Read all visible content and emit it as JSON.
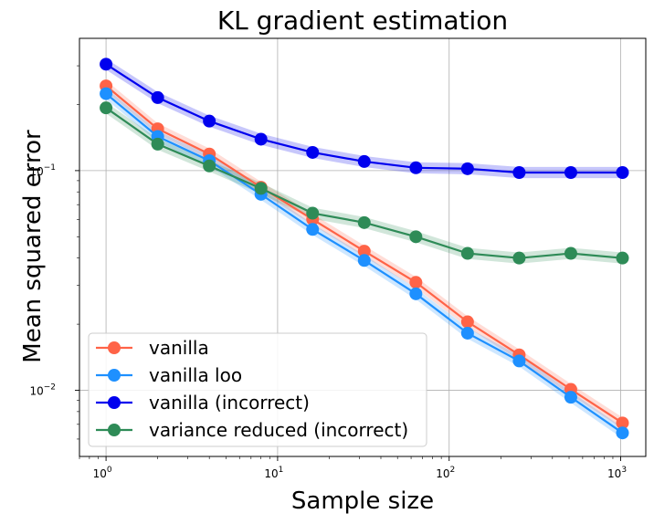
{
  "chart_data": {
    "type": "line",
    "title": "KL gradient estimation",
    "xlabel": "Sample size",
    "ylabel": "Mean squared error",
    "x_scale": "log",
    "y_scale": "log",
    "xlim": [
      0.7,
      1400
    ],
    "ylim": [
      0.005,
      0.4
    ],
    "grid": true,
    "legend_position": "lower-left",
    "x": [
      1,
      2,
      4,
      8,
      16,
      32,
      64,
      128,
      256,
      512,
      1024
    ],
    "x_ticks": [
      {
        "value": 1,
        "base": "10",
        "exp": "0"
      },
      {
        "value": 10,
        "base": "10",
        "exp": "1"
      },
      {
        "value": 100,
        "base": "10",
        "exp": "2"
      },
      {
        "value": 1000,
        "base": "10",
        "exp": "3"
      }
    ],
    "y_ticks": [
      {
        "value": 0.01,
        "base": "10",
        "exp": "−2"
      },
      {
        "value": 0.1,
        "base": "10",
        "exp": "−1"
      }
    ],
    "series": [
      {
        "name": "vanilla",
        "color": "#ff6347",
        "values": [
          0.243,
          0.155,
          0.119,
          0.084,
          0.06,
          0.043,
          0.031,
          0.0205,
          0.0145,
          0.0101,
          0.0071
        ]
      },
      {
        "name": "vanilla loo",
        "color": "#1e90ff",
        "values": [
          0.224,
          0.143,
          0.111,
          0.078,
          0.054,
          0.039,
          0.0275,
          0.0182,
          0.0136,
          0.0093,
          0.0064
        ]
      },
      {
        "name": "vanilla (incorrect)",
        "color": "#0000ee",
        "values": [
          0.305,
          0.215,
          0.168,
          0.139,
          0.121,
          0.11,
          0.103,
          0.102,
          0.098,
          0.098,
          0.098
        ]
      },
      {
        "name": "variance reduced (incorrect)",
        "color": "#2e8b57",
        "values": [
          0.193,
          0.132,
          0.105,
          0.083,
          0.064,
          0.058,
          0.05,
          0.042,
          0.04,
          0.042,
          0.04
        ]
      }
    ]
  }
}
